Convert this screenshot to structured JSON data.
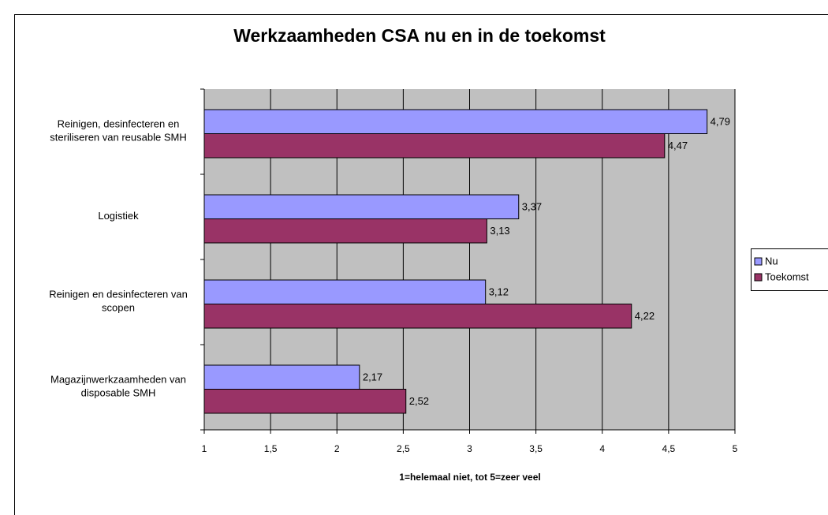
{
  "chart_data": {
    "type": "hbar",
    "title": "Werkzaamheden CSA nu en in de toekomst",
    "x_label": "1=helemaal niet, tot 5=zeer veel",
    "categories": [
      "Reinigen, desinfecteren en steriliseren van reusable SMH",
      "Logistiek",
      "Reinigen en desinfecteren van scopen",
      "Magazijnwerkzaamheden van disposable SMH"
    ],
    "series": [
      {
        "name": "Nu",
        "color": "#9999ff",
        "values": [
          4.79,
          3.37,
          3.12,
          2.17
        ],
        "value_labels": [
          "4,79",
          "3,37",
          "3,12",
          "2,17"
        ]
      },
      {
        "name": "Toekomst",
        "color": "#993366",
        "values": [
          4.47,
          3.13,
          4.22,
          2.52
        ],
        "value_labels": [
          "4,47",
          "3,13",
          "4,22",
          "2,52"
        ]
      }
    ],
    "xlim": [
      1,
      5
    ],
    "xticks": [
      1,
      {
        "value": 1.5,
        "label": "1,5"
      },
      2,
      {
        "value": 2.5,
        "label": "2,5"
      },
      3,
      {
        "value": 3.5,
        "label": "3,5"
      },
      4,
      {
        "value": 4.5,
        "label": "4,5"
      },
      5
    ],
    "grid": true,
    "legend": "right"
  }
}
